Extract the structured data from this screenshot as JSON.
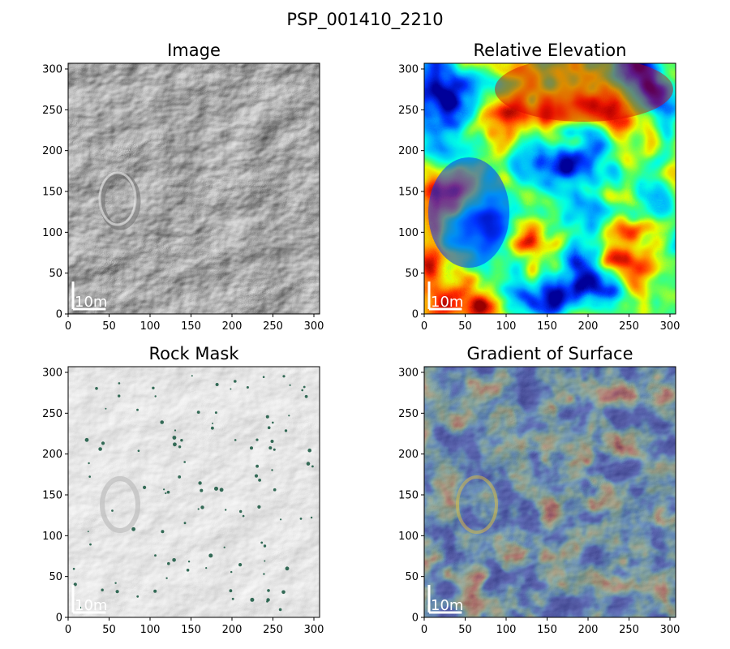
{
  "figure": {
    "title": "PSP_001410_2210",
    "scale_bar_label": "10m"
  },
  "panels": [
    {
      "title": "Image",
      "type": "grayscale-hillshade",
      "xlim": [
        0,
        300
      ],
      "ylim": [
        0,
        300
      ],
      "xticks": [
        0,
        50,
        100,
        150,
        200,
        250,
        300
      ],
      "yticks": [
        0,
        50,
        100,
        150,
        200,
        250,
        300
      ],
      "scale_bar_length": 40
    },
    {
      "title": "Relative Elevation",
      "type": "jet-colormap-elevation",
      "xlim": [
        0,
        300
      ],
      "ylim": [
        0,
        300
      ],
      "xticks": [
        0,
        50,
        100,
        150,
        200,
        250,
        300
      ],
      "yticks": [
        0,
        50,
        100,
        150,
        200,
        250,
        300
      ],
      "scale_bar_length": 40
    },
    {
      "title": "Rock Mask",
      "type": "grayscale-with-rock-overlay",
      "xlim": [
        0,
        300
      ],
      "ylim": [
        0,
        300
      ],
      "xticks": [
        0,
        50,
        100,
        150,
        200,
        250,
        300
      ],
      "yticks": [
        0,
        50,
        100,
        150,
        200,
        250,
        300
      ],
      "scale_bar_length": 40,
      "rock_color": "#1f5c46"
    },
    {
      "title": "Gradient of Surface",
      "type": "jet-overlay-gradient",
      "xlim": [
        0,
        300
      ],
      "ylim": [
        0,
        300
      ],
      "xticks": [
        0,
        50,
        100,
        150,
        200,
        250,
        300
      ],
      "yticks": [
        0,
        50,
        100,
        150,
        200,
        250,
        300
      ],
      "scale_bar_length": 40
    }
  ]
}
